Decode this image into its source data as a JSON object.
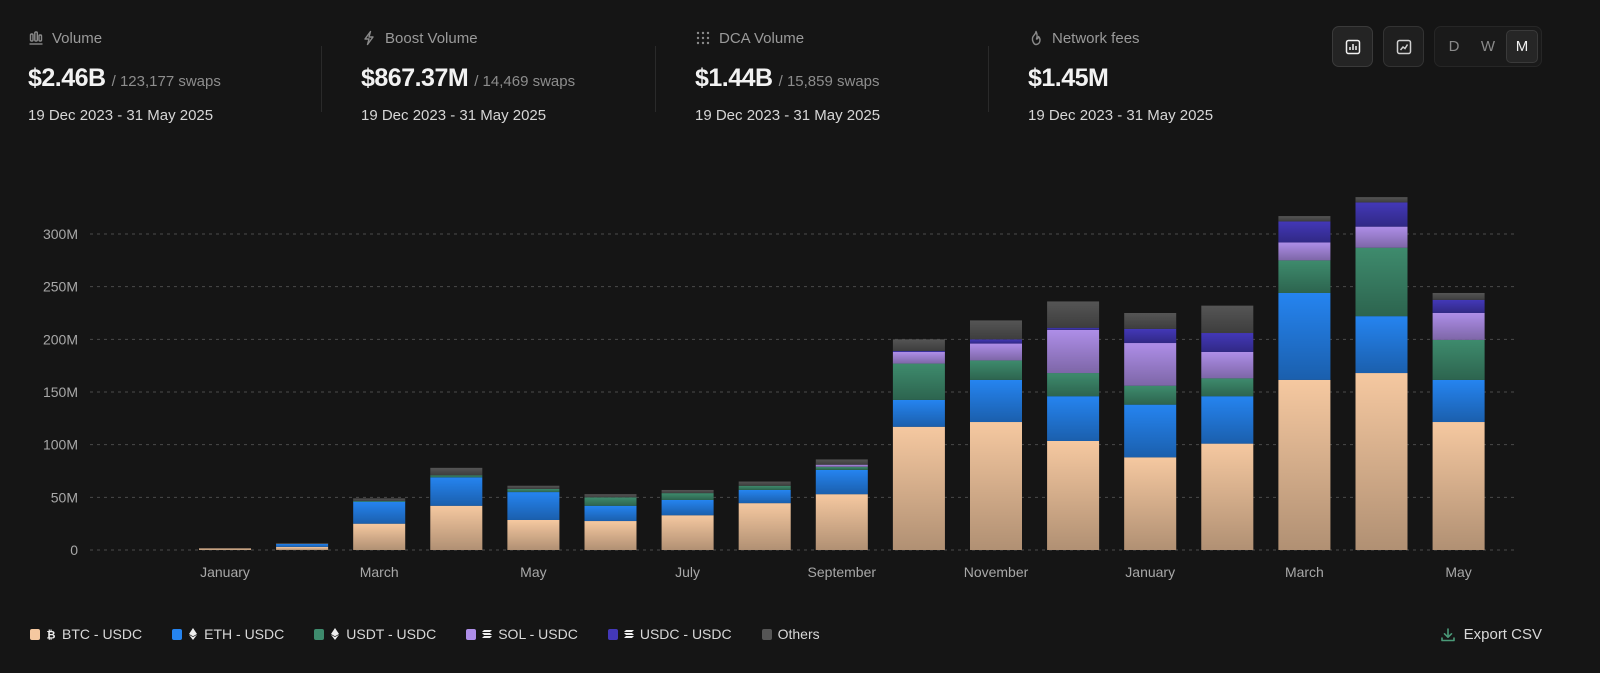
{
  "stats": [
    {
      "label": "Volume",
      "icon": "bar-chart-icon",
      "value": "$2.46B",
      "sub": "/ 123,177 swaps",
      "range": "19 Dec 2023 - 31 May 2025"
    },
    {
      "label": "Boost Volume",
      "icon": "lightning-icon",
      "value": "$867.37M",
      "sub": "/ 14,469 swaps",
      "range": "19 Dec 2023 - 31 May 2025"
    },
    {
      "label": "DCA Volume",
      "icon": "dots-grid-icon",
      "value": "$1.44B",
      "sub": "/ 15,859 swaps",
      "range": "19 Dec 2023 - 31 May 2025"
    },
    {
      "label": "Network fees",
      "icon": "flame-icon",
      "value": "$1.45M",
      "sub": "",
      "range": "19 Dec 2023 - 31 May 2025"
    }
  ],
  "controls": {
    "chart_types": [
      {
        "name": "bar-chart-toggle",
        "active": true
      },
      {
        "name": "line-chart-toggle",
        "active": false
      }
    ],
    "granularity": [
      {
        "label": "D",
        "active": false
      },
      {
        "label": "W",
        "active": false
      },
      {
        "label": "M",
        "active": true
      }
    ]
  },
  "export_label": "Export CSV",
  "chart_data": {
    "type": "bar",
    "stacked": true,
    "title": "",
    "xlabel": "",
    "ylabel": "",
    "ylim": [
      0,
      340
    ],
    "y_ticks": [
      0,
      50,
      100,
      150,
      200,
      250,
      300
    ],
    "y_tick_labels": [
      "0",
      "50M",
      "100M",
      "150M",
      "200M",
      "250M",
      "300M"
    ],
    "grid": true,
    "legend_position": "bottom-left",
    "categories": [
      "Jan 2024",
      "Feb 2024",
      "Mar 2024",
      "Apr 2024",
      "May 2024",
      "Jun 2024",
      "Jul 2024",
      "Aug 2024",
      "Sep 2024",
      "Oct 2024",
      "Nov 2024",
      "Dec 2024",
      "Jan 2025",
      "Feb 2025",
      "Mar 2025",
      "Apr 2025",
      "May 2025"
    ],
    "x_tick_labels": [
      "January",
      "",
      "March",
      "",
      "May",
      "",
      "July",
      "",
      "September",
      "",
      "November",
      "",
      "January",
      "",
      "March",
      "",
      "May"
    ],
    "series": [
      {
        "name": "BTC - USDC",
        "color": "#f5c8a0",
        "icon": "bitcoin-icon",
        "values": [
          1.5,
          3,
          25,
          42,
          28.5,
          27.5,
          33,
          44.5,
          53,
          117,
          121.5,
          103.5,
          88,
          101,
          161.5,
          168,
          121.5
        ]
      },
      {
        "name": "ETH - USDC",
        "color": "#2584f0",
        "icon": "ethereum-icon",
        "values": [
          0,
          3,
          21,
          27,
          26.5,
          14.5,
          14.5,
          12.5,
          23,
          25.5,
          40,
          42.5,
          50,
          45,
          82.5,
          54,
          40
        ]
      },
      {
        "name": "USDT - USDC",
        "color": "#3e8b6d",
        "icon": "ethereum-icon",
        "values": [
          0,
          0,
          0.5,
          2,
          3,
          8,
          6.5,
          4,
          3,
          34.5,
          18.5,
          22,
          18,
          17,
          31,
          65,
          38
        ]
      },
      {
        "name": "SOL - USDC",
        "color": "#ae8ee8",
        "icon": "solana-icon",
        "values": [
          0,
          0,
          0,
          0,
          0,
          0,
          0,
          0,
          2,
          11,
          16,
          41,
          40.5,
          25,
          17,
          20,
          25.5
        ]
      },
      {
        "name": "USDC - USDC",
        "color": "#4338b8",
        "icon": "solana-icon",
        "values": [
          0,
          0,
          0,
          0,
          0,
          0,
          0,
          0,
          0,
          1,
          4,
          2,
          13.5,
          18,
          20,
          23,
          12.5
        ]
      },
      {
        "name": "Others",
        "color": "#555555",
        "icon": "",
        "values": [
          0,
          0.5,
          2.5,
          7,
          3,
          3,
          3,
          4,
          5,
          11,
          18,
          25,
          15,
          26,
          5,
          5,
          6.5
        ]
      }
    ]
  }
}
